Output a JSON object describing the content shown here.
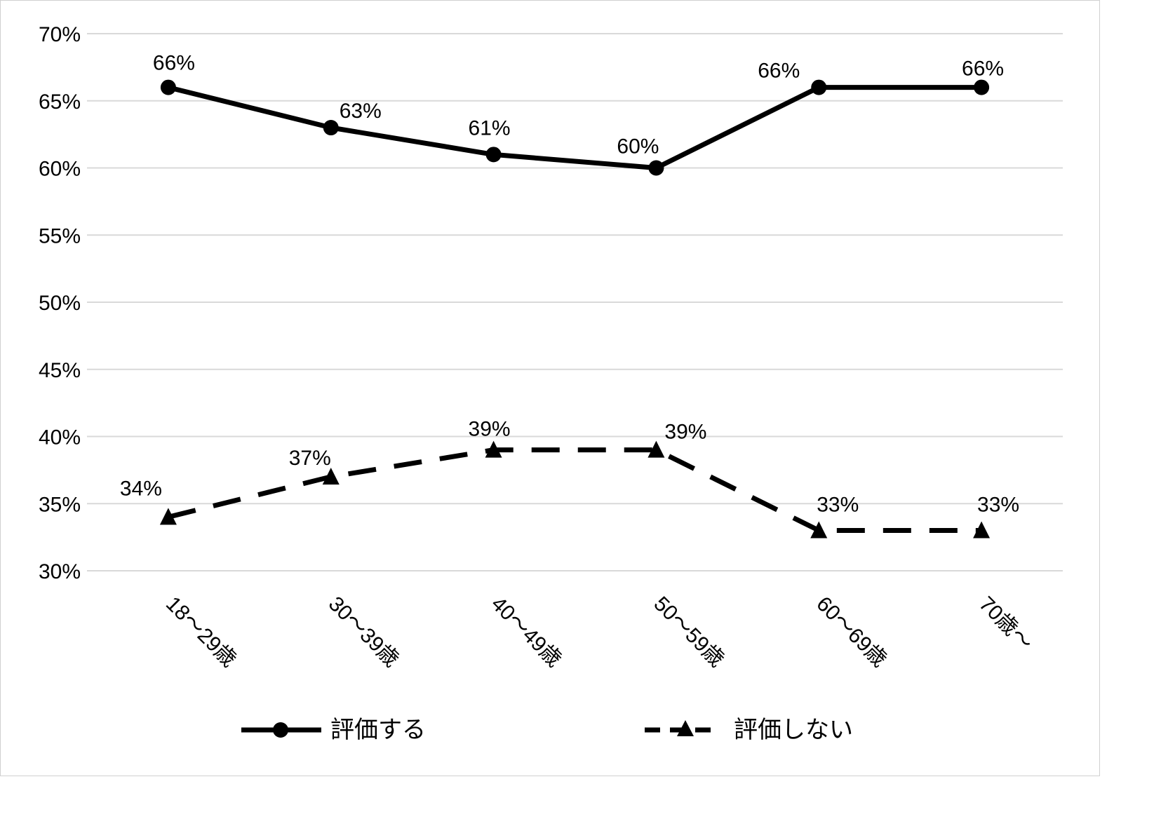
{
  "chart_data": {
    "type": "line",
    "categories": [
      "18～29歳",
      "30～39歳",
      "40～49歳",
      "50～59歳",
      "60～69歳",
      "70歳～"
    ],
    "ylim": [
      0.3,
      0.7
    ],
    "y_ticks": [
      "30%",
      "35%",
      "40%",
      "45%",
      "50%",
      "55%",
      "60%",
      "65%",
      "70%"
    ],
    "grid": true,
    "legend_position": "bottom",
    "series": [
      {
        "name": "評価する",
        "values": [
          0.66,
          0.63,
          0.61,
          0.6,
          0.66,
          0.66
        ],
        "labels": [
          "66%",
          "63%",
          "61%",
          "60%",
          "66%",
          "66%"
        ],
        "style": "solid",
        "marker": "circle",
        "color": "#000000"
      },
      {
        "name": "評価しない",
        "values": [
          0.34,
          0.37,
          0.39,
          0.39,
          0.33,
          0.33
        ],
        "labels": [
          "34%",
          "37%",
          "39%",
          "39%",
          "33%",
          "33%"
        ],
        "style": "dashed",
        "marker": "triangle",
        "color": "#000000"
      }
    ]
  }
}
